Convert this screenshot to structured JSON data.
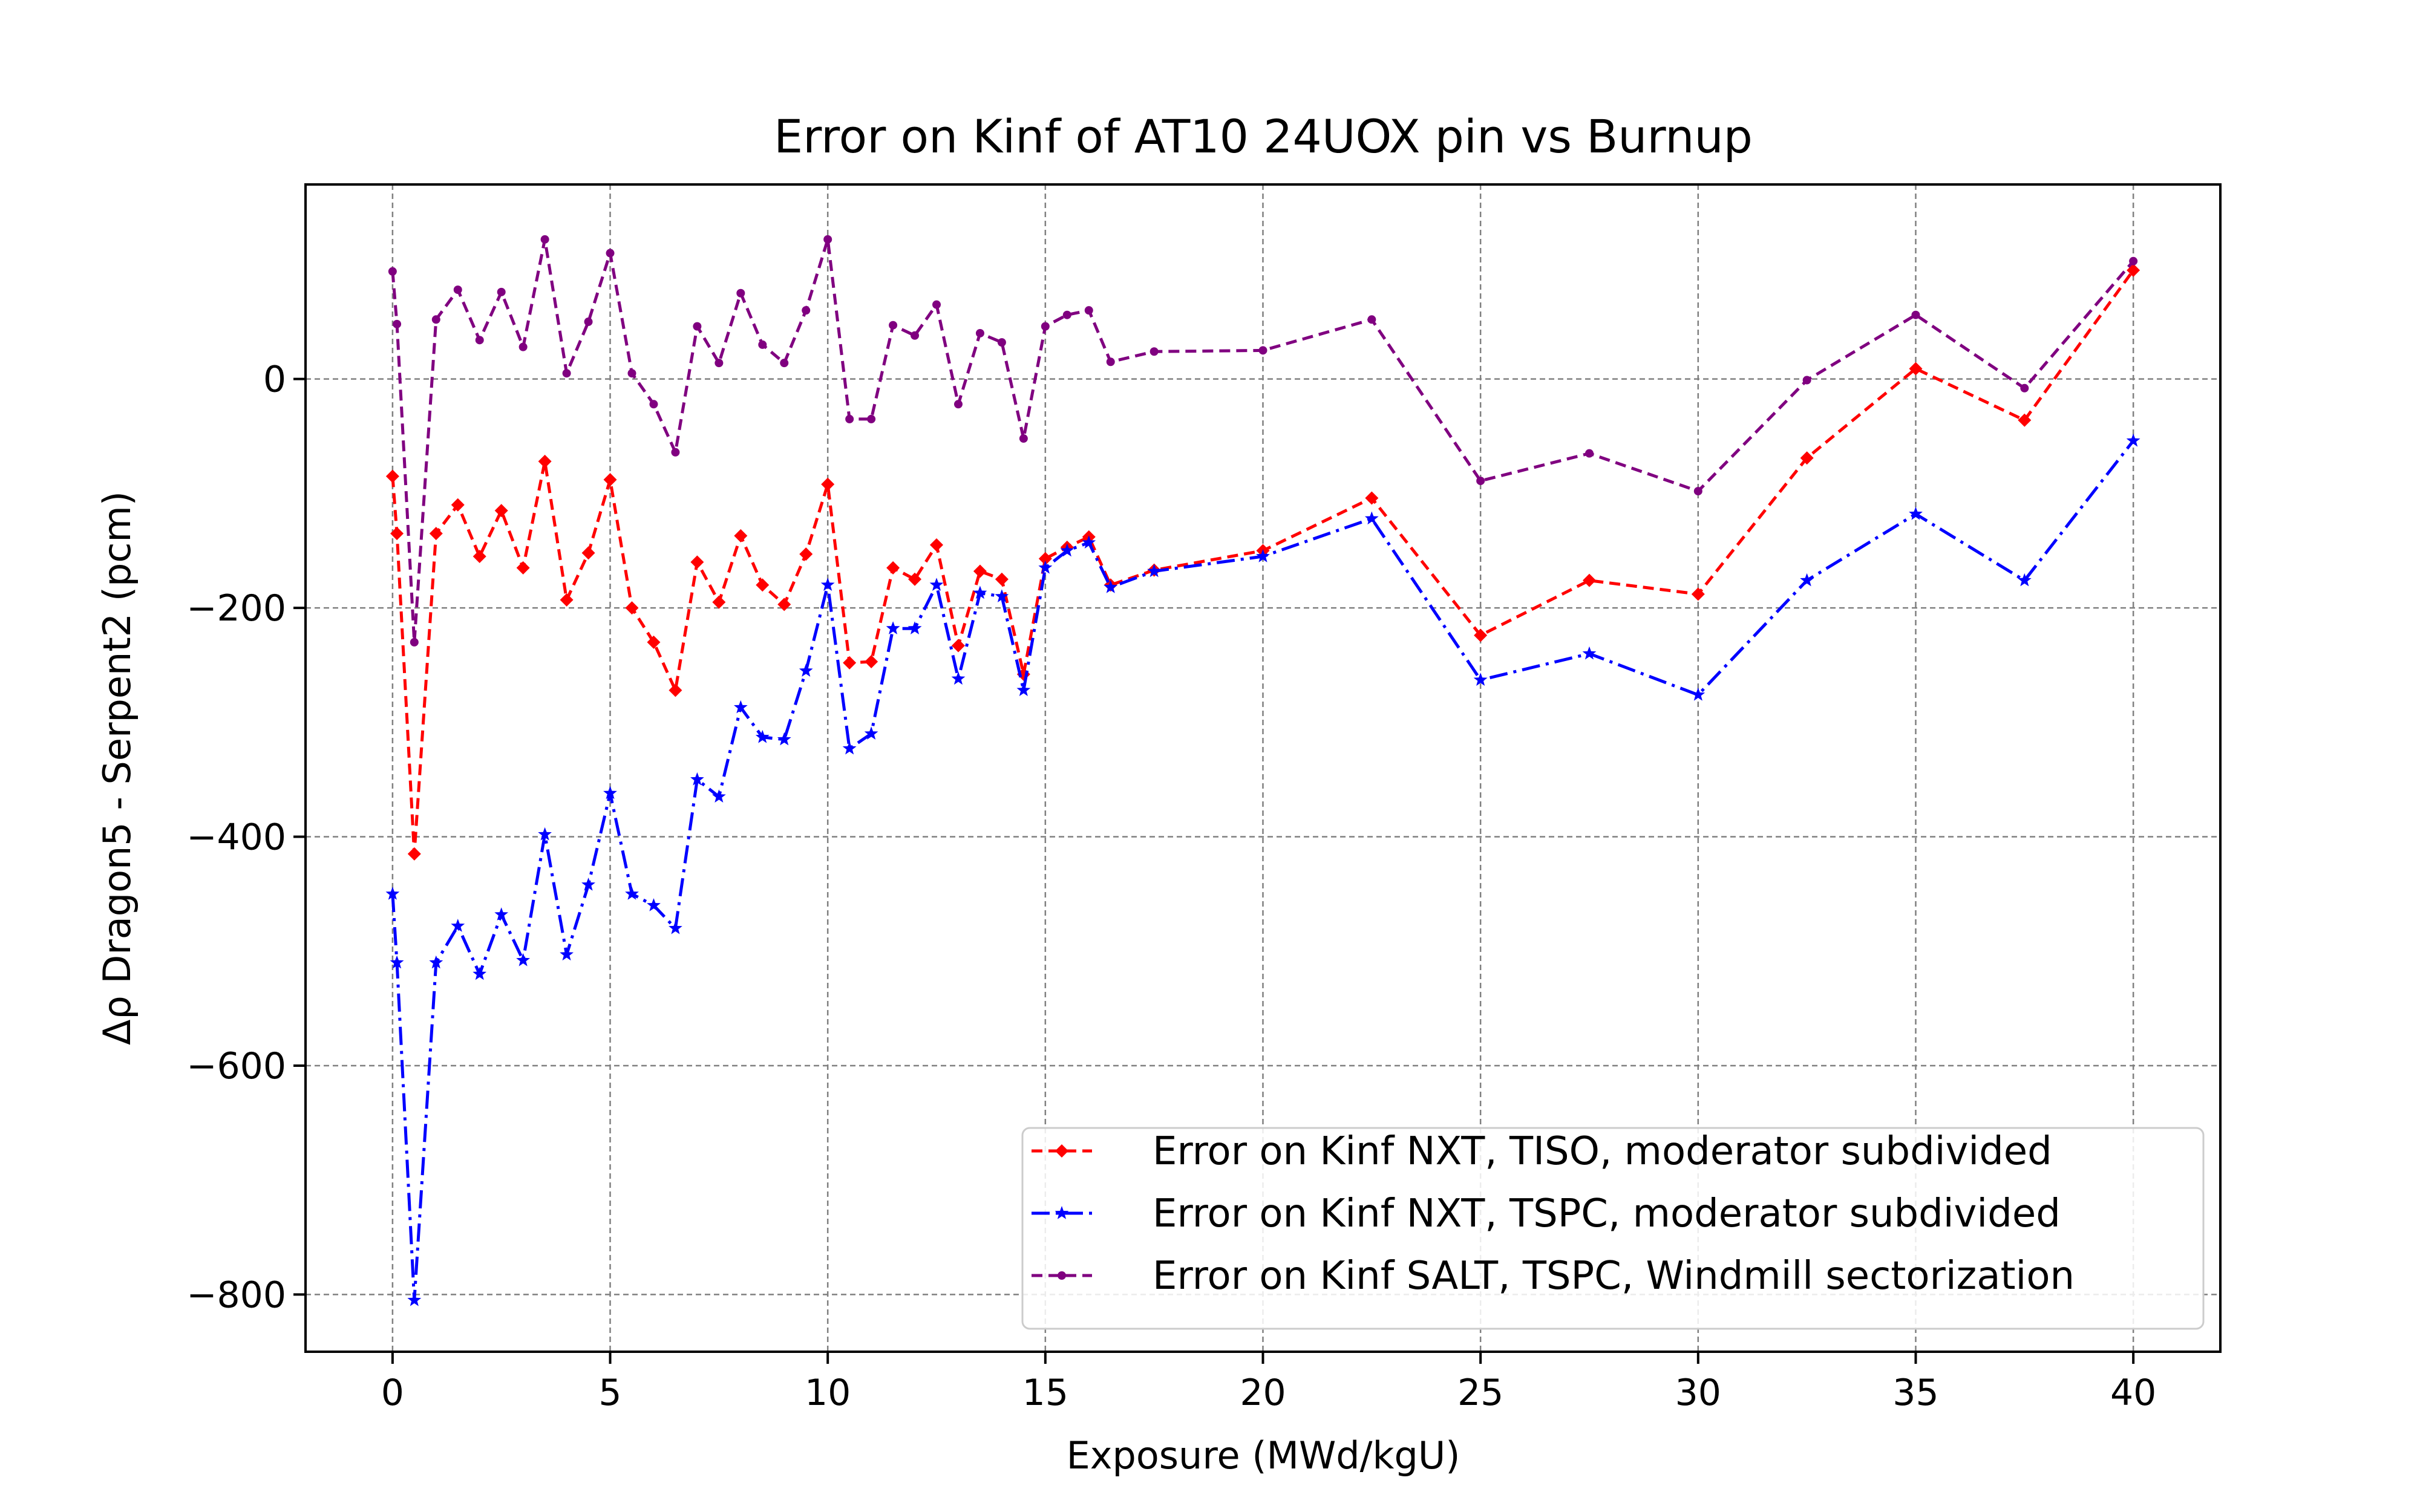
{
  "chart_data": {
    "type": "line",
    "title": "Error on Kinf of AT10 24UOX pin vs Burnup",
    "xlabel": "Exposure (MWd/kgU)",
    "ylabel": "Δρ Dragon5 - Serpent2 (pcm)",
    "xlim": [
      -2,
      42
    ],
    "ylim": [
      -850,
      170
    ],
    "xticks": [
      0,
      5,
      10,
      15,
      20,
      25,
      30,
      35,
      40
    ],
    "yticks": [
      0,
      -200,
      -400,
      -600,
      -800
    ],
    "xtick_labels": [
      "0",
      "5",
      "10",
      "15",
      "20",
      "25",
      "30",
      "35",
      "40"
    ],
    "ytick_labels": [
      "0",
      "−200",
      "−400",
      "−600",
      "−800"
    ],
    "grid": true,
    "legend_position": "lower-right",
    "series": [
      {
        "name": "Error on Kinf NXT, TISO, moderator subdivided",
        "color": "#ff0000",
        "linestyle": "dashed",
        "marker": "diamond",
        "x": [
          0,
          0.1,
          0.5,
          1,
          1.5,
          2,
          2.5,
          3,
          3.5,
          4,
          4.5,
          5,
          5.5,
          6,
          6.5,
          7,
          7.5,
          8,
          8.5,
          9,
          9.5,
          10,
          10.5,
          11,
          11.5,
          12,
          12.5,
          13,
          13.5,
          14,
          14.5,
          15,
          15.5,
          16,
          16.5,
          17.5,
          20,
          22.5,
          25,
          27.5,
          30,
          32.5,
          35,
          37.5,
          40
        ],
        "y": [
          -85,
          -135,
          -415,
          -135,
          -110,
          -155,
          -115,
          -165,
          -72,
          -193,
          -152,
          -88,
          -200,
          -230,
          -272,
          -160,
          -195,
          -137,
          -180,
          -197,
          -153,
          -92,
          -248,
          -247,
          -165,
          -175,
          -145,
          -233,
          -168,
          -175,
          -258,
          -157,
          -147,
          -138,
          -180,
          -167,
          -150,
          -104,
          -224,
          -176,
          -188,
          -69,
          9,
          -36,
          95
        ]
      },
      {
        "name": "Error on Kinf NXT, TSPC, moderator subdivided",
        "color": "#0000ff",
        "linestyle": "dashdot",
        "marker": "star",
        "x": [
          0,
          0.1,
          0.5,
          1,
          1.5,
          2,
          2.5,
          3,
          3.5,
          4,
          4.5,
          5,
          5.5,
          6,
          6.5,
          7,
          7.5,
          8,
          8.5,
          9,
          9.5,
          10,
          10.5,
          11,
          11.5,
          12,
          12.5,
          13,
          13.5,
          14,
          14.5,
          15,
          15.5,
          16,
          16.5,
          17.5,
          20,
          22.5,
          25,
          27.5,
          30,
          32.5,
          35,
          37.5,
          40
        ],
        "y": [
          -450,
          -510,
          -805,
          -510,
          -478,
          -520,
          -468,
          -508,
          -398,
          -503,
          -442,
          -362,
          -450,
          -460,
          -480,
          -350,
          -365,
          -287,
          -313,
          -315,
          -255,
          -180,
          -323,
          -310,
          -218,
          -218,
          -180,
          -262,
          -187,
          -190,
          -272,
          -165,
          -150,
          -143,
          -182,
          -168,
          -155,
          -122,
          -263,
          -240,
          -276,
          -176,
          -118,
          -176,
          -54
        ]
      },
      {
        "name": "Error on Kinf SALT, TSPC, Windmill sectorization",
        "color": "#800080",
        "linestyle": "dashed",
        "marker": "dot",
        "x": [
          0,
          0.1,
          0.5,
          1,
          1.5,
          2,
          2.5,
          3,
          3.5,
          4,
          4.5,
          5,
          5.5,
          6,
          6.5,
          7,
          7.5,
          8,
          8.5,
          9,
          9.5,
          10,
          10.5,
          11,
          11.5,
          12,
          12.5,
          13,
          13.5,
          14,
          14.5,
          15,
          15.5,
          16,
          16.5,
          17.5,
          20,
          22.5,
          25,
          27.5,
          30,
          32.5,
          35,
          37.5,
          40
        ],
        "y": [
          94,
          48,
          -230,
          52,
          78,
          34,
          76,
          28,
          122,
          5,
          50,
          110,
          5,
          -22,
          -64,
          46,
          14,
          75,
          30,
          14,
          60,
          122,
          -35,
          -35,
          47,
          38,
          65,
          -22,
          40,
          32,
          -52,
          46,
          56,
          60,
          15,
          24,
          25,
          52,
          -89,
          -65,
          -98,
          -1,
          56,
          -8,
          103
        ]
      }
    ]
  }
}
